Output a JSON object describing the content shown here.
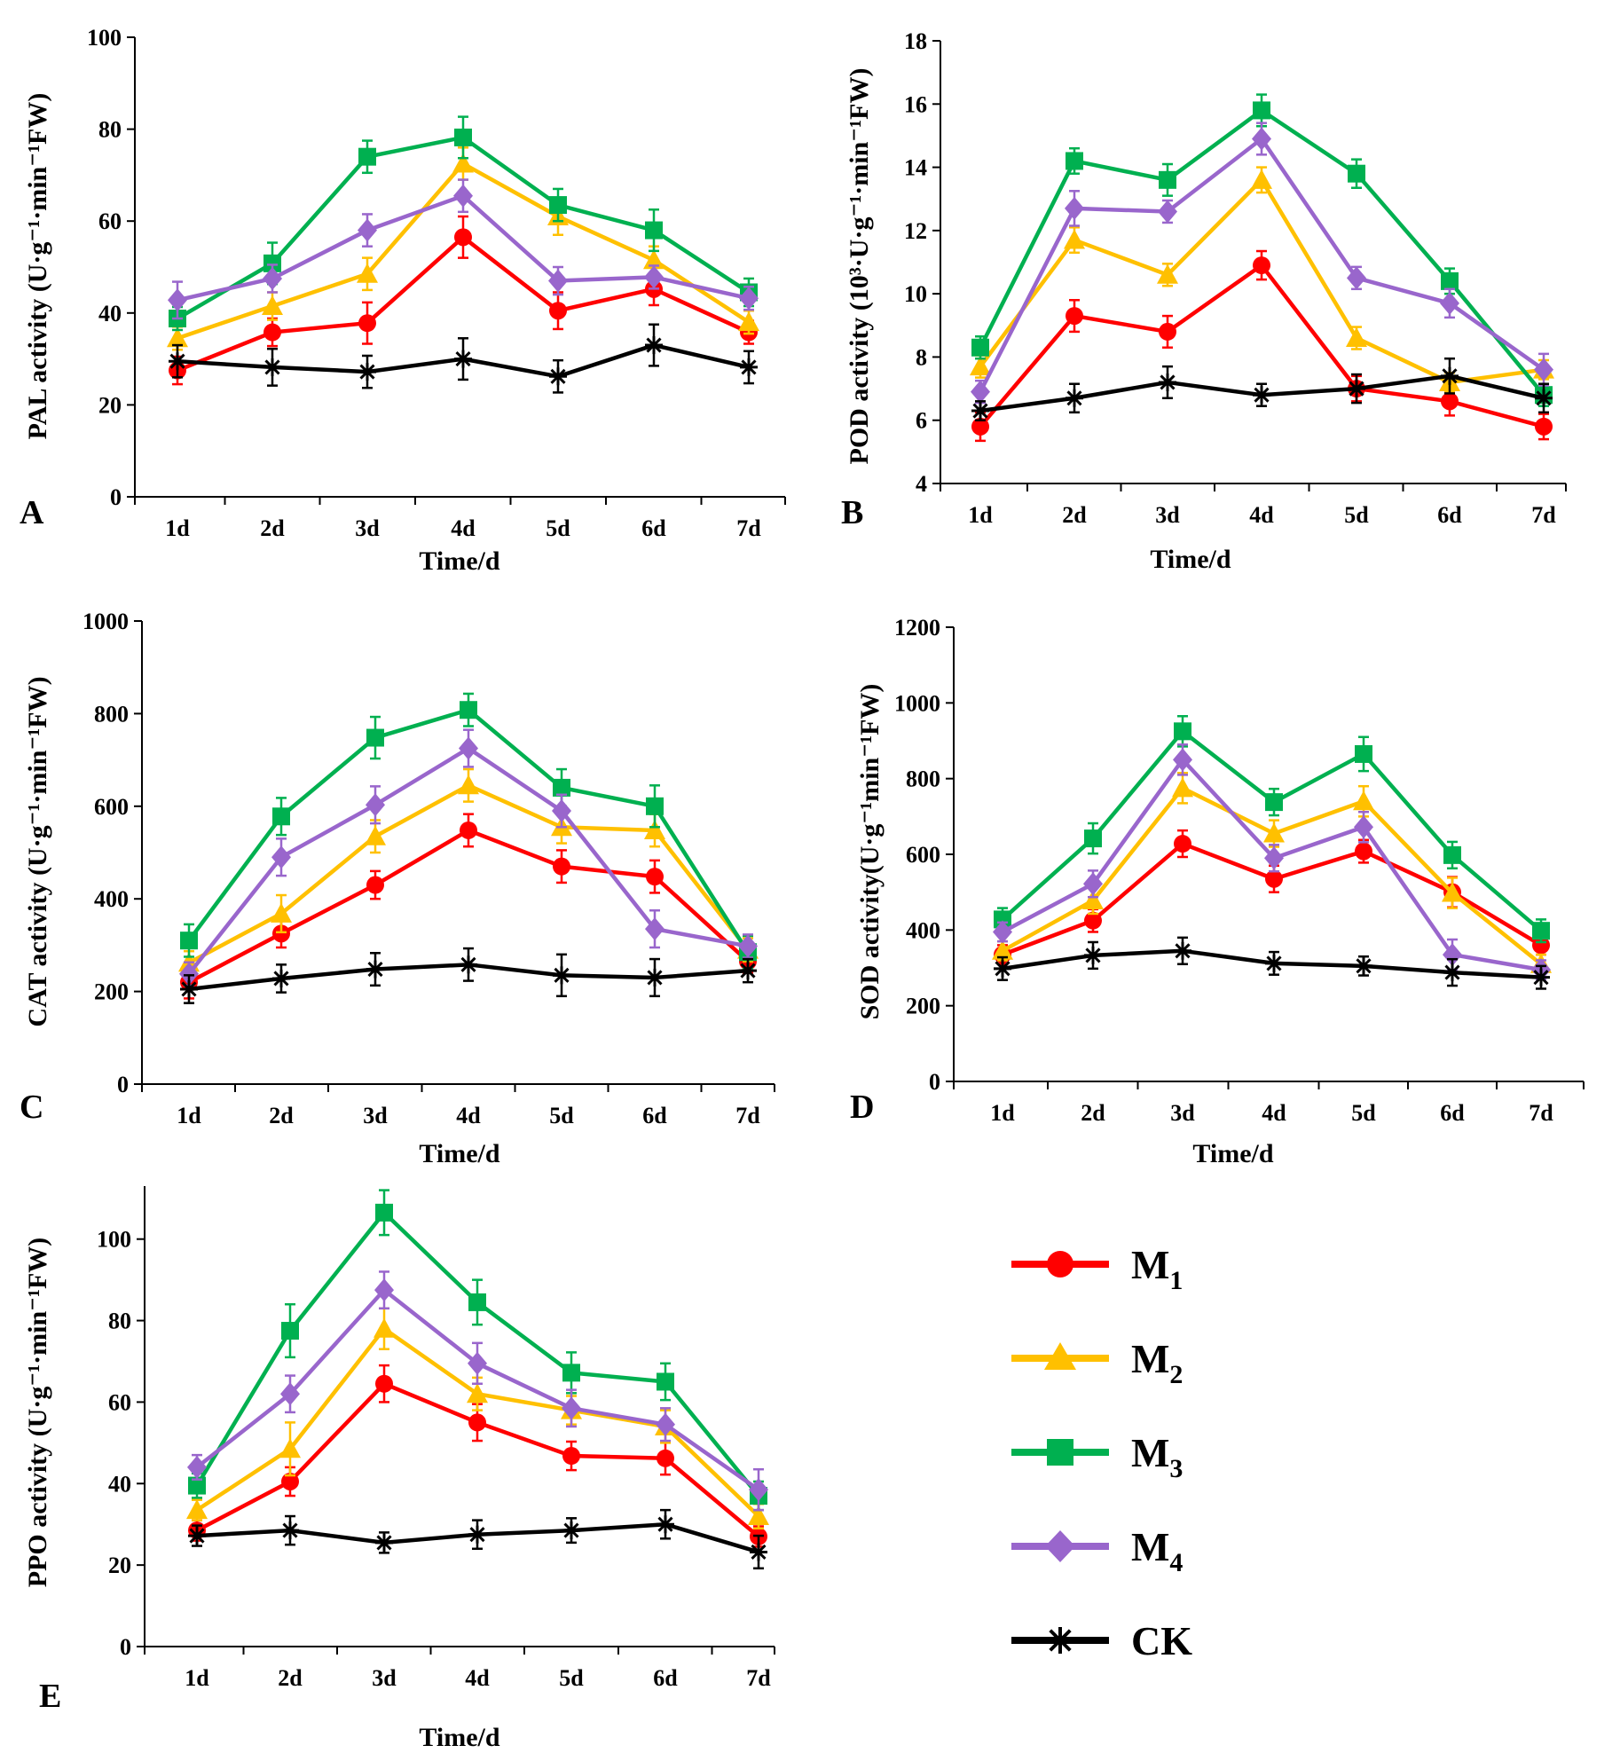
{
  "series_styles": [
    {
      "key": "M1",
      "name": "M",
      "sub": "1",
      "color": "#ff0000",
      "marker": "circle"
    },
    {
      "key": "M2",
      "name": "M",
      "sub": "2",
      "color": "#ffc000",
      "marker": "triangle"
    },
    {
      "key": "M3",
      "name": "M",
      "sub": "3",
      "color": "#00b050",
      "marker": "square"
    },
    {
      "key": "M4",
      "name": "M",
      "sub": "4",
      "color": "#9966cc",
      "marker": "diamond"
    },
    {
      "key": "CK",
      "name": "CK",
      "sub": "",
      "color": "#000000",
      "marker": "star"
    }
  ],
  "chart_data": [
    {
      "panel": "A",
      "type": "line",
      "xlabel": "Time/d",
      "ylabel": "PAL activity (U·g⁻¹·min⁻¹FW)",
      "categories": [
        "1d",
        "2d",
        "3d",
        "4d",
        "5d",
        "6d",
        "7d"
      ],
      "ylim": [
        0,
        100
      ],
      "yticks": [
        0,
        20,
        40,
        60,
        80,
        100
      ],
      "series": [
        {
          "name": "M1",
          "values": [
            27.5,
            35.8,
            37.8,
            56.5,
            40.5,
            45.2,
            35.8
          ],
          "errors": [
            3,
            3,
            4.5,
            4.5,
            4,
            3.5,
            2.5
          ]
        },
        {
          "name": "M2",
          "values": [
            34.5,
            41.5,
            48.5,
            72.5,
            61.0,
            51.5,
            38.0
          ],
          "errors": [
            2.5,
            3,
            3.5,
            3.5,
            4,
            3,
            2.5
          ]
        },
        {
          "name": "M3",
          "values": [
            38.8,
            50.8,
            74.0,
            78.2,
            63.5,
            58.0,
            44.5
          ],
          "errors": [
            2.5,
            4.5,
            3.5,
            4.5,
            3.5,
            4.5,
            3
          ]
        },
        {
          "name": "M4",
          "values": [
            42.8,
            47.5,
            58.0,
            65.5,
            47.0,
            47.8,
            43.2
          ],
          "errors": [
            4,
            3,
            3.5,
            3.5,
            3,
            2.5,
            2.5
          ]
        },
        {
          "name": "CK",
          "values": [
            29.5,
            28.2,
            27.2,
            30.0,
            26.2,
            33.0,
            28.2
          ],
          "errors": [
            3.5,
            4,
            3.5,
            4.5,
            3.5,
            4.5,
            3.5
          ]
        }
      ]
    },
    {
      "panel": "B",
      "type": "line",
      "xlabel": "Time/d",
      "ylabel": "POD activity (10³·U·g⁻¹·min⁻¹FW)",
      "categories": [
        "1d",
        "2d",
        "3d",
        "4d",
        "5d",
        "6d",
        "7d"
      ],
      "ylim": [
        4,
        18
      ],
      "yticks": [
        4,
        6,
        8,
        10,
        12,
        14,
        16,
        18
      ],
      "series": [
        {
          "name": "M1",
          "values": [
            5.8,
            9.3,
            8.8,
            10.9,
            7.0,
            6.6,
            5.8
          ],
          "errors": [
            0.45,
            0.5,
            0.5,
            0.45,
            0.4,
            0.45,
            0.4
          ]
        },
        {
          "name": "M2",
          "values": [
            7.7,
            11.7,
            10.6,
            13.6,
            8.6,
            7.2,
            7.6
          ],
          "errors": [
            0.35,
            0.4,
            0.35,
            0.4,
            0.35,
            0.3,
            0.3
          ]
        },
        {
          "name": "M3",
          "values": [
            8.3,
            14.2,
            13.6,
            15.8,
            13.8,
            10.4,
            6.8
          ],
          "errors": [
            0.35,
            0.4,
            0.5,
            0.5,
            0.45,
            0.4,
            0.35
          ]
        },
        {
          "name": "M4",
          "values": [
            6.9,
            12.7,
            12.6,
            14.9,
            10.5,
            9.7,
            7.6
          ],
          "errors": [
            0.35,
            0.55,
            0.35,
            0.5,
            0.35,
            0.45,
            0.5
          ]
        },
        {
          "name": "CK",
          "values": [
            6.3,
            6.7,
            7.2,
            6.8,
            7.0,
            7.4,
            6.7
          ],
          "errors": [
            0.3,
            0.45,
            0.5,
            0.35,
            0.45,
            0.55,
            0.45
          ]
        }
      ]
    },
    {
      "panel": "C",
      "type": "line",
      "xlabel": "Time/d",
      "ylabel": "CAT activity (U·g⁻¹·min⁻¹FW)",
      "categories": [
        "1d",
        "2d",
        "3d",
        "4d",
        "5d",
        "6d",
        "7d"
      ],
      "ylim": [
        0,
        1000
      ],
      "yticks": [
        0,
        200,
        400,
        600,
        800,
        1000
      ],
      "series": [
        {
          "name": "M1",
          "values": [
            220,
            325,
            430,
            548,
            470,
            448,
            265
          ],
          "errors": [
            35,
            30,
            30,
            35,
            35,
            35,
            25
          ]
        },
        {
          "name": "M2",
          "values": [
            262,
            368,
            535,
            645,
            555,
            548,
            290
          ],
          "errors": [
            25,
            40,
            35,
            35,
            35,
            35,
            25
          ]
        },
        {
          "name": "M3",
          "values": [
            310,
            578,
            748,
            808,
            640,
            600,
            285
          ],
          "errors": [
            35,
            40,
            45,
            35,
            40,
            45,
            35
          ]
        },
        {
          "name": "M4",
          "values": [
            238,
            490,
            603,
            725,
            590,
            335,
            298
          ],
          "errors": [
            25,
            40,
            40,
            40,
            35,
            40,
            25
          ]
        },
        {
          "name": "CK",
          "values": [
            205,
            228,
            248,
            258,
            235,
            230,
            245
          ],
          "errors": [
            30,
            30,
            35,
            35,
            45,
            40,
            25
          ]
        }
      ]
    },
    {
      "panel": "D",
      "type": "line",
      "xlabel": "Time/d",
      "ylabel": "SOD activity(U·g⁻¹min⁻¹FW)",
      "categories": [
        "1d",
        "2d",
        "3d",
        "4d",
        "5d",
        "6d",
        "7d"
      ],
      "ylim": [
        0,
        1200
      ],
      "yticks": [
        0,
        200,
        400,
        600,
        800,
        1000,
        1200
      ],
      "series": [
        {
          "name": "M1",
          "values": [
            335,
            425,
            628,
            535,
            608,
            500,
            360
          ],
          "errors": [
            25,
            30,
            35,
            35,
            30,
            40,
            25
          ]
        },
        {
          "name": "M2",
          "values": [
            345,
            478,
            775,
            655,
            740,
            498,
            310
          ],
          "errors": [
            25,
            35,
            40,
            35,
            40,
            40,
            25
          ]
        },
        {
          "name": "M3",
          "values": [
            428,
            642,
            925,
            738,
            865,
            598,
            398
          ],
          "errors": [
            30,
            40,
            40,
            35,
            45,
            35,
            30
          ]
        },
        {
          "name": "M4",
          "values": [
            395,
            522,
            850,
            590,
            672,
            335,
            295
          ],
          "errors": [
            25,
            35,
            40,
            35,
            40,
            40,
            25
          ]
        },
        {
          "name": "CK",
          "values": [
            298,
            333,
            345,
            312,
            305,
            288,
            275
          ],
          "errors": [
            30,
            35,
            35,
            30,
            25,
            35,
            30
          ]
        }
      ]
    },
    {
      "panel": "E",
      "type": "line",
      "xlabel": "Time/d",
      "ylabel": "PPO activity (U·g⁻¹·min⁻¹FW)",
      "categories": [
        "1d",
        "2d",
        "3d",
        "4d",
        "5d",
        "6d",
        "7d"
      ],
      "ylim": [
        0,
        113
      ],
      "yticks": [
        0,
        20,
        40,
        60,
        80,
        100
      ],
      "series": [
        {
          "name": "M1",
          "values": [
            28.5,
            40.5,
            64.5,
            55.0,
            46.8,
            46.2,
            27.0
          ],
          "errors": [
            2.5,
            3.5,
            4.5,
            4.5,
            3.5,
            4,
            2.5
          ]
        },
        {
          "name": "M2",
          "values": [
            33.5,
            48.5,
            78.0,
            62.0,
            58.0,
            54.0,
            32.0
          ],
          "errors": [
            2.5,
            6.5,
            5,
            4,
            3.5,
            4,
            3
          ]
        },
        {
          "name": "M3",
          "values": [
            39.5,
            77.5,
            106.5,
            84.5,
            67.2,
            65.0,
            37.0
          ],
          "errors": [
            3,
            6.5,
            5.5,
            5.5,
            5,
            4.5,
            3.5
          ]
        },
        {
          "name": "M4",
          "values": [
            44.0,
            62.0,
            87.5,
            69.5,
            58.5,
            54.5,
            38.5
          ],
          "errors": [
            3,
            4.5,
            4.5,
            5,
            4.5,
            4,
            5
          ]
        },
        {
          "name": "CK",
          "values": [
            27.2,
            28.5,
            25.5,
            27.5,
            28.5,
            30.0,
            23.2
          ],
          "errors": [
            2.5,
            3.5,
            2.5,
            3.5,
            3,
            3.5,
            4
          ]
        }
      ]
    }
  ]
}
